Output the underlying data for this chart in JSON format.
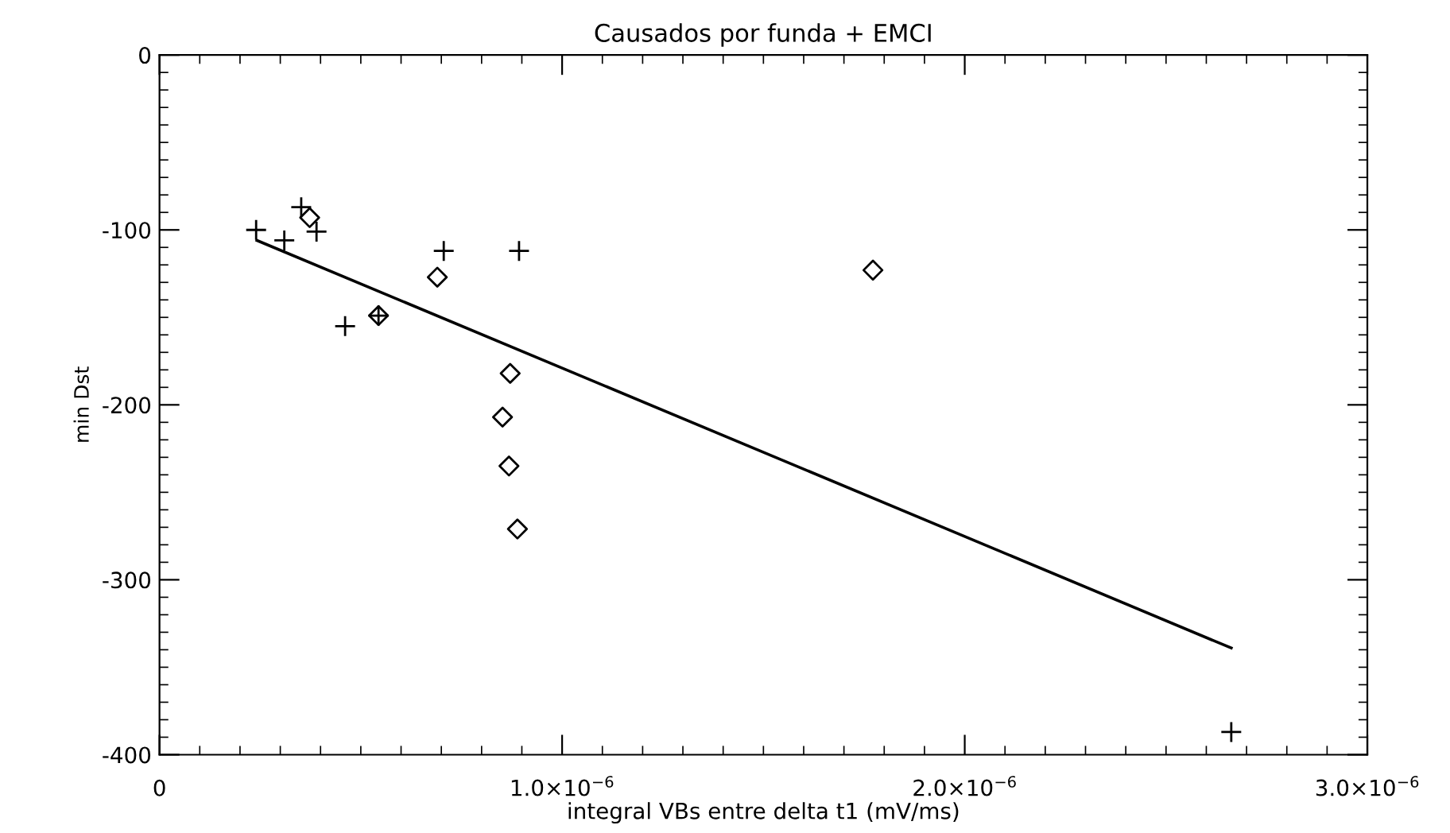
{
  "chart_data": {
    "type": "scatter",
    "title": "Causados por funda + EMCI",
    "xlabel": "integral VBs entre delta t1 (mV/ms)",
    "ylabel": "min Dst",
    "xlim": [
      0,
      3e-06
    ],
    "ylim": [
      -400,
      0
    ],
    "xticks": [
      {
        "value": 0,
        "label": "0"
      },
      {
        "value": 1e-06,
        "label": "1.0×10$^{−6}$"
      },
      {
        "value": 2e-06,
        "label": "2.0×10$^{−6}$"
      },
      {
        "value": 3e-06,
        "label": "3.0×10$^{−6}$"
      }
    ],
    "yticks": [
      0,
      -100,
      -200,
      -300,
      -400
    ],
    "grid": false,
    "series": [
      {
        "color": "#000000",
        "marker": "cross",
        "x": [
          2.4e-07,
          3.1e-07,
          3.52e-07,
          3.9e-07,
          4.61e-07,
          5.44e-07,
          7.06e-07,
          8.93e-07,
          2.662e-06
        ],
        "values": [
          -100,
          -106,
          -87,
          -101,
          -155,
          -149,
          -112,
          -112,
          -387
        ]
      },
      {
        "color": "#000000",
        "marker": "diamond",
        "x": [
          3.73e-07,
          5.44e-07,
          6.9e-07,
          8.71e-07,
          8.52e-07,
          8.68e-07,
          8.89e-07,
          1.772e-06
        ],
        "values": [
          -93,
          -149,
          -127,
          -182,
          -207,
          -235,
          -271,
          -123
        ]
      },
      {
        "color": "#000000",
        "type": "line",
        "marker": "none",
        "x": [
          2.42e-07,
          2.662e-06
        ],
        "values": [
          -106,
          -339
        ]
      }
    ]
  }
}
